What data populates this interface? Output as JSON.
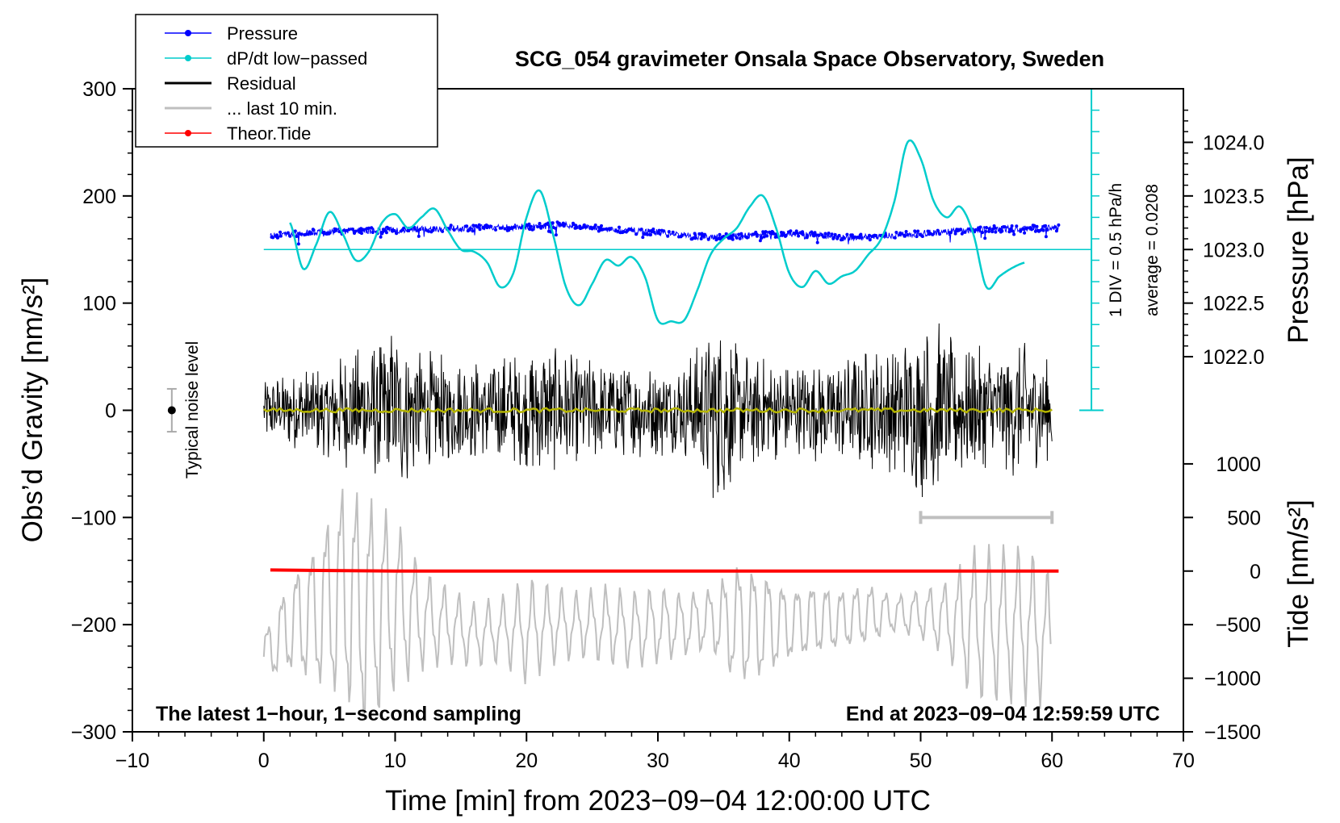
{
  "chart_data": {
    "type": "line",
    "title": "SCG_054 gravimeter Onsala Space Observatory, Sweden",
    "xlabel": "Time [min] from 2023−09−04 12:00:00 UTC",
    "ylabel_left": "Obs’d Gravity [nm/s²]",
    "ylabel_right_top": "Pressure [hPa]",
    "ylabel_right_bottom": "Tide [nm/s²]",
    "xlim": [
      -10,
      70
    ],
    "ylim": [
      -300,
      300
    ],
    "x_ticks": [
      -10,
      0,
      10,
      20,
      30,
      40,
      50,
      60,
      70
    ],
    "x_tick_labels": [
      "−10",
      "0",
      "10",
      "20",
      "30",
      "40",
      "50",
      "60",
      "70"
    ],
    "y_ticks": [
      -300,
      -200,
      -100,
      0,
      100,
      200,
      300
    ],
    "y_tick_labels": [
      "−300",
      "−200",
      "−100",
      "0",
      "100",
      "200",
      "300"
    ],
    "pressure_axis": {
      "ticks": [
        1022.0,
        1022.5,
        1023.0,
        1023.5,
        1024.0
      ],
      "labels": [
        "1022.0",
        "1022.5",
        "1023.0",
        "1023.5",
        "1024.0"
      ],
      "gravity_at_1023": 150,
      "gravity_per_hpa": 100
    },
    "tide_axis": {
      "ticks": [
        -1500,
        -1000,
        -500,
        0,
        500,
        1000
      ],
      "labels": [
        "−1500",
        "−1000",
        "−500",
        "0",
        "500",
        "1000"
      ],
      "gravity_at_zero": -150,
      "gravity_per_unit": 0.1
    },
    "legend": [
      {
        "label": "Pressure",
        "color": "#0000ff",
        "marker": "dot"
      },
      {
        "label": "dP/dt low−passed",
        "color": "#00cccc",
        "marker": "dot"
      },
      {
        "label": "Residual",
        "color": "#000000",
        "marker": "line"
      },
      {
        "label": "... last 10 min.",
        "color": "#bfbfbf",
        "marker": "line"
      },
      {
        "label": "Theor.Tide",
        "color": "#ff0000",
        "marker": "dot"
      }
    ],
    "series": [
      {
        "name": "Pressure",
        "color": "#0000ff",
        "x": [
          0.5,
          5,
          10,
          15,
          20,
          23,
          25,
          30,
          33,
          35,
          40,
          45,
          50,
          55,
          60.5
        ],
        "y": [
          163,
          167,
          168,
          170,
          171,
          173,
          170,
          166,
          162,
          162,
          165,
          161,
          165,
          169,
          170
        ]
      },
      {
        "name": "dP/dt low−passed",
        "color": "#00cccc",
        "x": [
          2,
          3,
          4,
          5,
          6,
          7,
          8,
          9,
          10,
          11,
          12,
          13,
          14,
          15,
          16,
          17,
          18,
          19,
          20,
          21,
          22,
          23,
          24,
          25,
          26,
          27,
          28,
          29,
          30,
          31,
          32,
          33,
          34,
          35,
          36,
          37,
          38,
          39,
          40,
          41,
          42,
          43,
          44,
          45,
          46,
          47,
          48,
          49,
          50,
          51,
          52,
          53,
          54,
          55,
          56,
          57,
          58
        ],
        "y": [
          175,
          132,
          155,
          185,
          165,
          140,
          148,
          175,
          183,
          170,
          180,
          188,
          168,
          150,
          148,
          138,
          115,
          128,
          180,
          205,
          165,
          115,
          98,
          118,
          140,
          135,
          143,
          125,
          84,
          83,
          84,
          112,
          145,
          160,
          170,
          190,
          200,
          170,
          128,
          115,
          130,
          118,
          125,
          130,
          145,
          160,
          195,
          250,
          235,
          195,
          180,
          190,
          165,
          115,
          125,
          133,
          138
        ]
      },
      {
        "name": "Residual",
        "color": "#000000",
        "x": [
          0,
          5,
          8,
          10,
          13,
          15,
          20,
          21,
          22,
          25,
          30,
          32,
          35,
          36,
          40,
          45,
          49,
          51,
          52,
          55,
          58,
          60
        ],
        "y": [
          0,
          0,
          0,
          0,
          0,
          0,
          0,
          0,
          0,
          0,
          0,
          0,
          0,
          0,
          0,
          0,
          0,
          0,
          0,
          0,
          0,
          0
        ],
        "envelope_amplitude": [
          30,
          45,
          70,
          80,
          55,
          50,
          55,
          70,
          60,
          50,
          45,
          45,
          100,
          60,
          45,
          55,
          70,
          95,
          70,
          60,
          65,
          45
        ]
      },
      {
        "name": "... last 10 min.",
        "color": "#bfbfbf",
        "x": [
          0,
          2,
          4,
          6,
          8,
          10,
          12,
          14,
          16,
          18,
          20,
          22,
          24,
          26,
          28,
          30,
          32,
          34,
          36,
          38,
          40,
          42,
          44,
          46,
          48,
          50,
          52,
          54,
          56,
          58,
          60
        ],
        "y": [
          -230,
          -200,
          -190,
          -170,
          -190,
          -180,
          -195,
          -200,
          -210,
          -205,
          -205,
          -200,
          -200,
          -200,
          -205,
          -200,
          -200,
          -195,
          -200,
          -200,
          -200,
          -195,
          -195,
          -190,
          -190,
          -190,
          -195,
          -200,
          -200,
          -200,
          -215
        ],
        "oscillation_amplitude": [
          20,
          40,
          60,
          90,
          95,
          70,
          40,
          30,
          25,
          25,
          40,
          30,
          25,
          30,
          30,
          30,
          25,
          25,
          50,
          45,
          30,
          30,
          25,
          25,
          15,
          20,
          30,
          60,
          60,
          60,
          50
        ]
      },
      {
        "name": "Theor.Tide",
        "color": "#ff0000",
        "x": [
          0.5,
          10,
          20,
          30,
          40,
          50,
          60.5
        ],
        "y": [
          -149,
          -150,
          -150,
          -150,
          -150,
          -150,
          -150
        ]
      },
      {
        "name": "Residual smoothed",
        "color": "#b5b500",
        "x": [
          0,
          60
        ],
        "y": [
          0,
          0
        ]
      }
    ],
    "pressure_mean_line": {
      "y": 150,
      "x_range": [
        0,
        63
      ]
    },
    "scale_bar": {
      "label": "1 DIV = 0.5 hPa/h",
      "average_label": "average = 0.0208",
      "x": 63,
      "y_range": [
        0,
        300
      ]
    },
    "noise_level": {
      "label": "Typical noise level",
      "x": -7,
      "y": 0,
      "error": 20
    },
    "last10_bar": {
      "x_range": [
        50,
        60
      ],
      "y": -100
    },
    "footer_left": "The latest 1−hour, 1−second sampling",
    "footer_right": "End at 2023−09−04 12:59:59 UTC"
  }
}
